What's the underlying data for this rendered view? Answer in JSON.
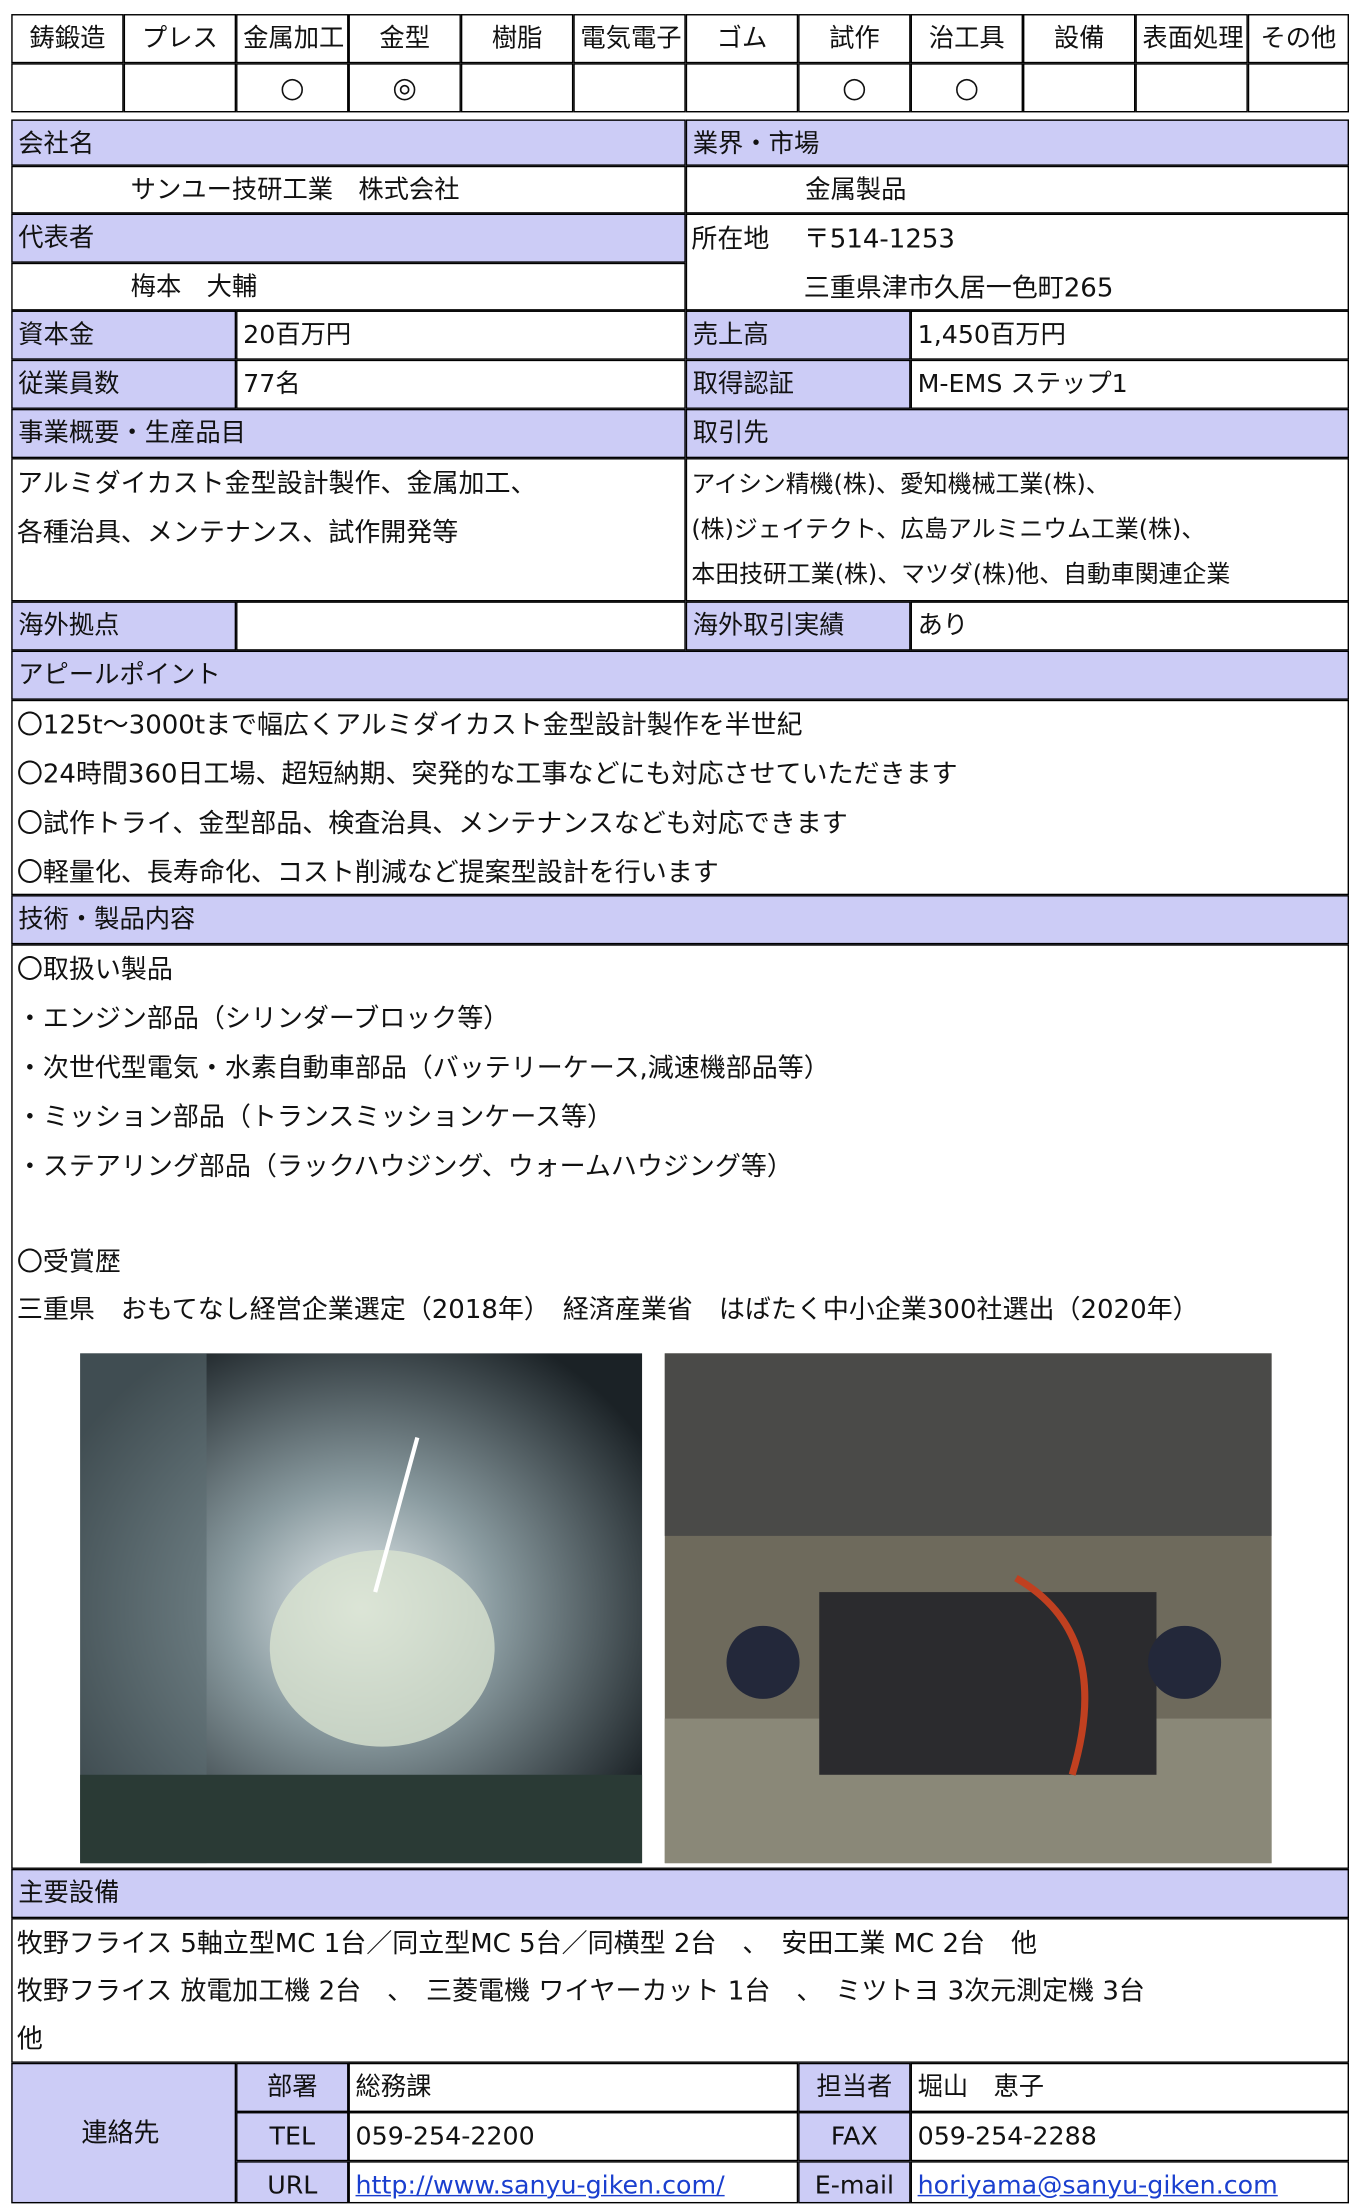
{
  "categories": {
    "headers": [
      "鋳鍛造",
      "プレス",
      "金属加工",
      "金型",
      "樹脂",
      "電気電子",
      "ゴム",
      "試作",
      "治工具",
      "設備",
      "表面処理",
      "その他"
    ],
    "marks": [
      null,
      null,
      "○",
      "◎",
      null,
      null,
      null,
      "○",
      "○",
      null,
      null,
      null
    ]
  },
  "company": {
    "label": "会社名",
    "value": "サンユー技研工業　株式会社"
  },
  "industry": {
    "label": "業界・市場",
    "value": "金属製品"
  },
  "representative": {
    "label": "代表者",
    "value": "梅本　大輔"
  },
  "address": {
    "label": "所在地",
    "postal": "〒514-1253",
    "value": "三重県津市久居一色町265"
  },
  "capital": {
    "label": "資本金",
    "value": "20百万円"
  },
  "sales": {
    "label": "売上高",
    "value": "1,450百万円"
  },
  "employees": {
    "label": "従業員数",
    "value": "77名"
  },
  "certification": {
    "label": "取得認証",
    "value": "M-EMS ステップ1"
  },
  "business": {
    "label": "事業概要・生産品目",
    "lines": [
      "アルミダイカスト金型設計製作、金属加工、",
      "各種治具、メンテナンス、試作開発等"
    ]
  },
  "clients": {
    "label": "取引先",
    "lines": [
      "アイシン精機(株)、愛知機械工業(株)、",
      "(株)ジェイテクト、広島アルミニウム工業(株)、",
      "本田技研工業(株)、マツダ(株)他、自動車関連企業"
    ]
  },
  "overseas_base": {
    "label": "海外拠点"
  },
  "overseas_trade": {
    "label": "海外取引実績",
    "value": "あり"
  },
  "appeal": {
    "label": "アピールポイント",
    "lines": [
      "〇125t～3000tまで幅広くアルミダイカスト金型設計製作を半世紀",
      "〇24時間360日工場、超短納期、突発的な工事などにも対応させていただきます",
      "〇試作トライ、金型部品、検査治具、メンテナンスなども対応できます",
      "〇軽量化、長寿命化、コスト削減など提案型設計を行います"
    ]
  },
  "technology": {
    "label": "技術・製品内容",
    "products": [
      "〇取扱い製品",
      "・エンジン部品（シリンダーブロック等）",
      "・次世代型電気・水素自動車部品（バッテリーケース,減速機部品等）",
      "・ミッション部品（トランスミッションケース等）",
      "・ステアリング部品（ラックハウジング、ウォームハウジング等）"
    ],
    "awards": [
      "〇受賞歴",
      "三重県　おもてなし経営企業選定（2018年）　経済産業省　はばたく中小企業300社選出（2020年）"
    ]
  },
  "equipment": {
    "label": "主要設備",
    "lines": [
      "牧野フライス 5軸立型MC 1台／同立型MC 5台／同横型 2台　、　安田工業 MC 2台　他",
      "牧野フライス 放電加工機 2台　、　三菱電機 ワイヤーカット 1台　、　ミツトヨ 3次元測定機 3台",
      "他"
    ]
  },
  "contact": {
    "label": "連絡先",
    "rows": [
      [
        "部署",
        "総務課",
        "担当者",
        "堀山　恵子"
      ],
      [
        "TEL",
        "059-254-2200",
        "FAX",
        "059-254-2288"
      ],
      [
        "URL",
        "http://www.sanyu-giken.com/",
        "E-mail",
        "horiyama@sanyu-giken.com"
      ]
    ]
  }
}
